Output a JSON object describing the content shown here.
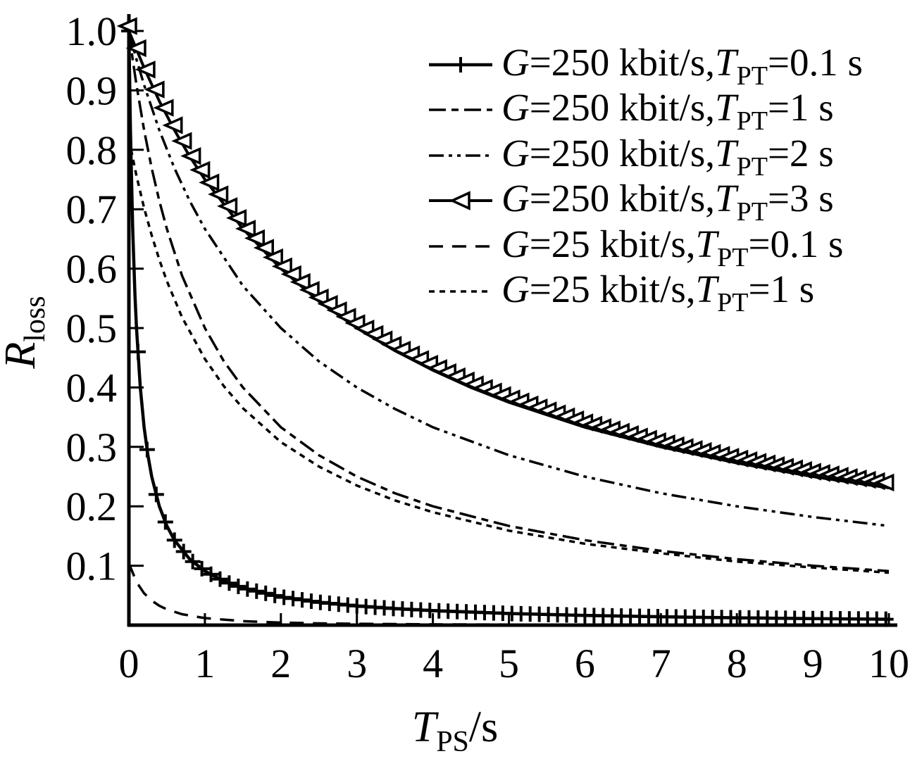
{
  "figure_title": "",
  "axes": {
    "x_label": {
      "variable": "T",
      "subscript": "PS",
      "suffix": "/s"
    },
    "y_label": {
      "variable": "R",
      "subscript": "loss",
      "suffix": ""
    },
    "x_ticks": [
      0,
      1,
      2,
      3,
      4,
      5,
      6,
      7,
      8,
      9,
      10
    ],
    "y_ticks": [
      0.1,
      0.2,
      0.3,
      0.4,
      0.5,
      0.6,
      0.7,
      0.8,
      0.9,
      1.0
    ],
    "xlim": [
      0,
      10
    ],
    "ylim": [
      0,
      1
    ]
  },
  "chart_data": {
    "type": "line",
    "title": "",
    "xlabel": "T_PS/s",
    "ylabel": "R_loss",
    "xlim": [
      0,
      10
    ],
    "ylim": [
      0,
      1
    ],
    "grid": false,
    "legend_position": "top-right",
    "axis_color": "#000000",
    "background": "#ffffff",
    "series": [
      {
        "id": "g25-tpt0p1",
        "label_parts": [
          [
            "G",
            "var"
          ],
          [
            "=25 kbit/s,",
            ""
          ],
          [
            "T",
            "var"
          ],
          [
            "PT",
            "sub"
          ],
          [
            "=0.1 s",
            ""
          ]
        ],
        "legend_order": 5,
        "line": "dashed",
        "dash": [
          20,
          13
        ],
        "width": 3.5,
        "marker": "none",
        "color": "#000000",
        "points": [
          [
            0,
            0.104
          ],
          [
            0.1,
            0.0726
          ],
          [
            0.2,
            0.0536
          ],
          [
            0.3,
            0.0412
          ],
          [
            0.4,
            0.0326
          ],
          [
            0.5,
            0.0265
          ],
          [
            0.7,
            0.0184
          ],
          [
            1,
            0.0118
          ],
          [
            1.5,
            0.0067
          ],
          [
            2,
            0.0043
          ],
          [
            2.5,
            0.003
          ],
          [
            3,
            0.0022
          ],
          [
            4,
            0.0013
          ],
          [
            5,
            0.0009
          ],
          [
            6,
            0.0006
          ],
          [
            7,
            0.0005
          ],
          [
            8,
            0.0004
          ],
          [
            9,
            0.0003
          ],
          [
            10,
            0.0002
          ]
        ]
      },
      {
        "id": "g25-tpt1",
        "label_parts": [
          [
            "G",
            "var"
          ],
          [
            "=25 kbit/s,",
            ""
          ],
          [
            "T",
            "var"
          ],
          [
            "PT",
            "sub"
          ],
          [
            "=1 s",
            ""
          ]
        ],
        "legend_order": 6,
        "line": "dotted",
        "dash": [
          8,
          7
        ],
        "width": 3.5,
        "marker": "none",
        "color": "#000000",
        "points": [
          [
            0,
            0.818
          ],
          [
            0.1,
            0.756
          ],
          [
            0.2,
            0.702
          ],
          [
            0.3,
            0.656
          ],
          [
            0.4,
            0.615
          ],
          [
            0.5,
            0.579
          ],
          [
            0.7,
            0.518
          ],
          [
            1,
            0.448
          ],
          [
            1.25,
            0.402
          ],
          [
            1.5,
            0.365
          ],
          [
            2,
            0.308
          ],
          [
            2.5,
            0.267
          ],
          [
            3,
            0.235
          ],
          [
            3.5,
            0.21
          ],
          [
            4,
            0.19
          ],
          [
            5,
            0.159
          ],
          [
            6,
            0.137
          ],
          [
            7,
            0.121
          ],
          [
            8,
            0.107
          ],
          [
            9,
            0.097
          ],
          [
            10,
            0.0883
          ]
        ]
      },
      {
        "id": "g250-tpt1",
        "label_parts": [
          [
            "G",
            "var"
          ],
          [
            "=250 kbit/s,",
            ""
          ],
          [
            "T",
            "var"
          ],
          [
            "PT",
            "sub"
          ],
          [
            "=1 s",
            ""
          ]
        ],
        "legend_order": 2,
        "line": "dash-dot",
        "dash": [
          24,
          8,
          10,
          8
        ],
        "width": 3.5,
        "marker": "none",
        "color": "#000000",
        "points": [
          [
            0,
            1
          ],
          [
            0.05,
            0.952
          ],
          [
            0.1,
            0.909
          ],
          [
            0.2,
            0.833
          ],
          [
            0.3,
            0.769
          ],
          [
            0.4,
            0.714
          ],
          [
            0.5,
            0.667
          ],
          [
            0.7,
            0.588
          ],
          [
            1,
            0.5
          ],
          [
            1.25,
            0.444
          ],
          [
            1.5,
            0.4
          ],
          [
            2,
            0.333
          ],
          [
            2.5,
            0.286
          ],
          [
            3,
            0.25
          ],
          [
            3.5,
            0.222
          ],
          [
            4,
            0.2
          ],
          [
            5,
            0.167
          ],
          [
            6,
            0.143
          ],
          [
            7,
            0.125
          ],
          [
            8,
            0.111
          ],
          [
            9,
            0.1
          ],
          [
            10,
            0.0909
          ]
        ]
      },
      {
        "id": "g250-tpt2",
        "label_parts": [
          [
            "G",
            "var"
          ],
          [
            "=250 kbit/s,",
            ""
          ],
          [
            "T",
            "var"
          ],
          [
            "PT",
            "sub"
          ],
          [
            "=2 s",
            ""
          ]
        ],
        "legend_order": 3,
        "line": "dash-dot-dot",
        "dash": [
          21,
          7,
          5,
          7,
          5,
          7
        ],
        "width": 3.5,
        "marker": "none",
        "color": "#000000",
        "points": [
          [
            0,
            1
          ],
          [
            0.1,
            0.952
          ],
          [
            0.2,
            0.909
          ],
          [
            0.4,
            0.833
          ],
          [
            0.6,
            0.769
          ],
          [
            0.8,
            0.714
          ],
          [
            1,
            0.667
          ],
          [
            1.5,
            0.571
          ],
          [
            2,
            0.5
          ],
          [
            2.5,
            0.444
          ],
          [
            3,
            0.4
          ],
          [
            3.5,
            0.364
          ],
          [
            4,
            0.333
          ],
          [
            5,
            0.286
          ],
          [
            6,
            0.25
          ],
          [
            7,
            0.222
          ],
          [
            8,
            0.2
          ],
          [
            9,
            0.182
          ],
          [
            10,
            0.167
          ]
        ]
      },
      {
        "id": "g250-tpt0p1",
        "label_parts": [
          [
            "G",
            "var"
          ],
          [
            "=250 kbit/s,",
            ""
          ],
          [
            "T",
            "var"
          ],
          [
            "PT",
            "sub"
          ],
          [
            "=0.1 s",
            ""
          ]
        ],
        "legend_order": 1,
        "line": "solid",
        "dash": null,
        "width": 4.5,
        "marker": "plus",
        "marker_step_x": 0.12,
        "color": "#000000",
        "points": [
          [
            0,
            1
          ],
          [
            0.02,
            0.833
          ],
          [
            0.05,
            0.667
          ],
          [
            0.08,
            0.556
          ],
          [
            0.1,
            0.5
          ],
          [
            0.15,
            0.4
          ],
          [
            0.2,
            0.333
          ],
          [
            0.25,
            0.286
          ],
          [
            0.3,
            0.25
          ],
          [
            0.4,
            0.2
          ],
          [
            0.5,
            0.167
          ],
          [
            0.6,
            0.143
          ],
          [
            0.8,
            0.111
          ],
          [
            1,
            0.091
          ],
          [
            1.25,
            0.074
          ],
          [
            1.5,
            0.0625
          ],
          [
            2,
            0.0476
          ],
          [
            2.5,
            0.0385
          ],
          [
            3,
            0.0323
          ],
          [
            3.5,
            0.0278
          ],
          [
            4,
            0.0244
          ],
          [
            5,
            0.0196
          ],
          [
            6,
            0.0164
          ],
          [
            7,
            0.0141
          ],
          [
            8,
            0.0123
          ],
          [
            9,
            0.011
          ],
          [
            10,
            0.0099
          ]
        ]
      },
      {
        "id": "g250-tpt3",
        "label_parts": [
          [
            "G",
            "var"
          ],
          [
            "=250 kbit/s,",
            ""
          ],
          [
            "T",
            "var"
          ],
          [
            "PT",
            "sub"
          ],
          [
            "=3 s",
            ""
          ]
        ],
        "legend_order": 4,
        "line": "solid",
        "dash": null,
        "width": 4,
        "marker": "triangle-left",
        "marker_step_x": 0.12,
        "color": "#000000",
        "points": [
          [
            0,
            1
          ],
          [
            0.2,
            0.938
          ],
          [
            0.4,
            0.882
          ],
          [
            0.6,
            0.833
          ],
          [
            0.8,
            0.789
          ],
          [
            1,
            0.75
          ],
          [
            1.5,
            0.667
          ],
          [
            2,
            0.6
          ],
          [
            2.5,
            0.545
          ],
          [
            3,
            0.5
          ],
          [
            3.5,
            0.462
          ],
          [
            4,
            0.429
          ],
          [
            4.5,
            0.4
          ],
          [
            5,
            0.375
          ],
          [
            6,
            0.333
          ],
          [
            7,
            0.3
          ],
          [
            8,
            0.273
          ],
          [
            9,
            0.25
          ],
          [
            10,
            0.231
          ]
        ]
      }
    ]
  }
}
